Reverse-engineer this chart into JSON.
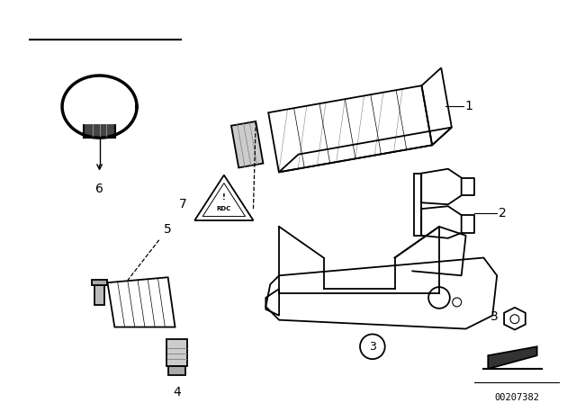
{
  "bg_color": "#ffffff",
  "line_color": "#000000",
  "part_number": "00207382",
  "figsize": [
    6.4,
    4.48
  ],
  "dpi": 100
}
